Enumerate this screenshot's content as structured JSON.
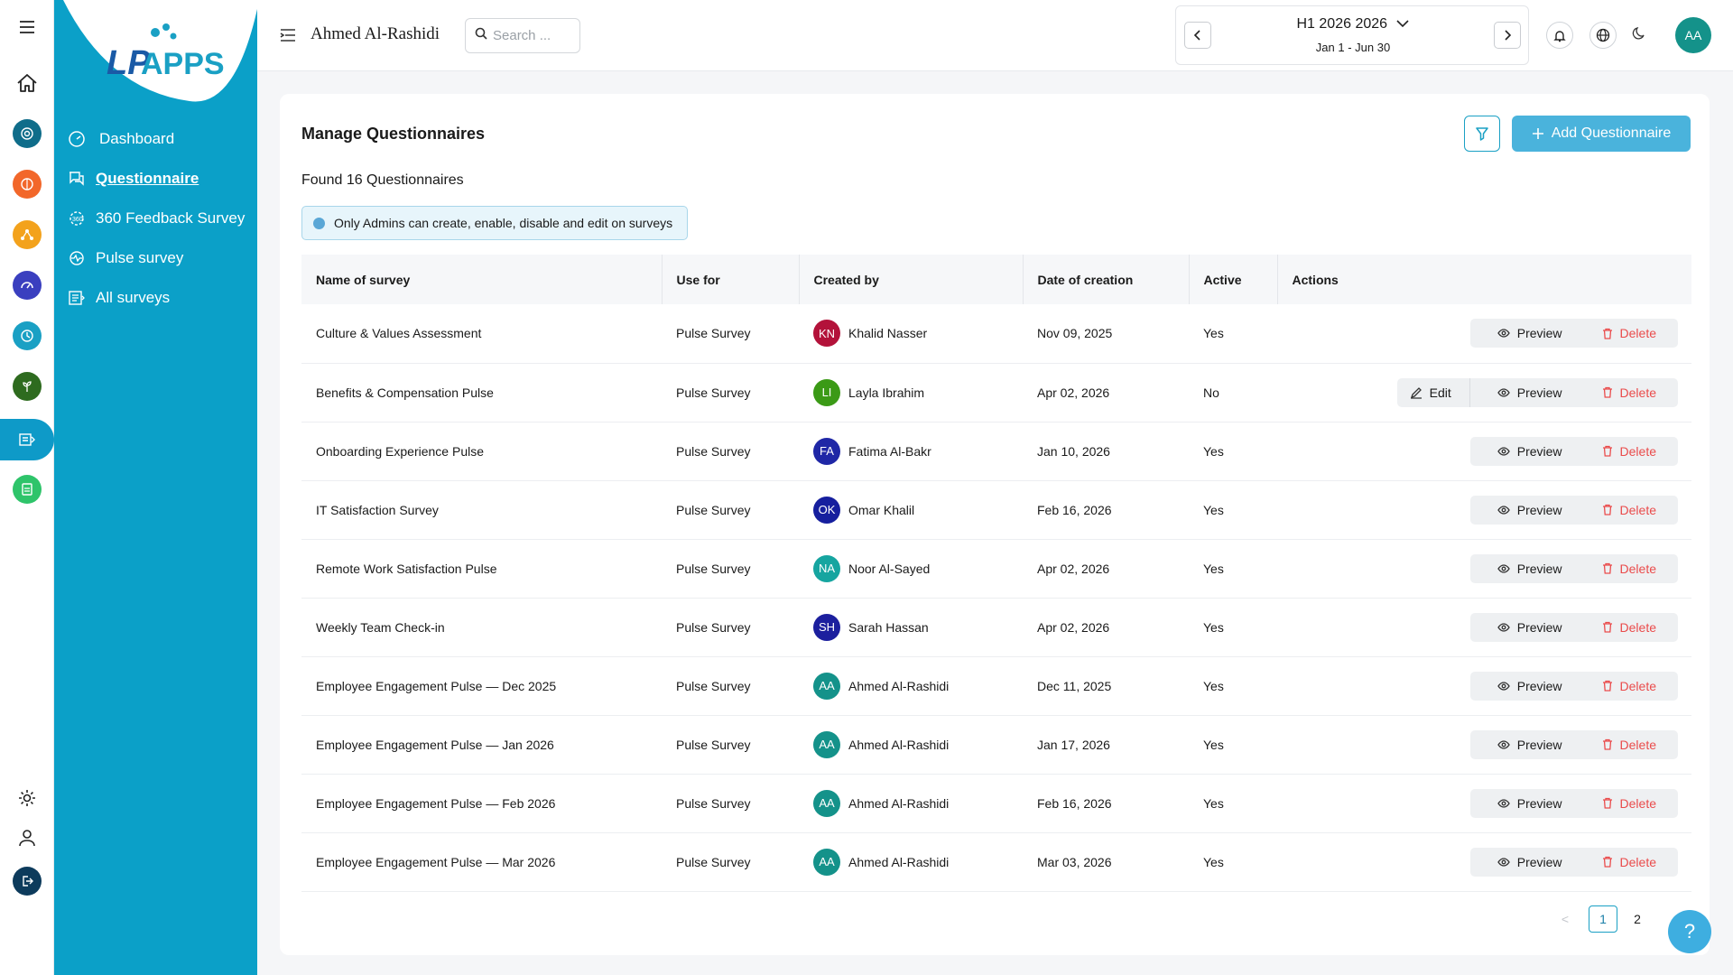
{
  "brand": {
    "logo_text": "APPS",
    "logo_prefix": "L P"
  },
  "rail": {
    "items": [
      {
        "name": "home-icon"
      },
      {
        "name": "target-icon",
        "color": "#0f6d8a"
      },
      {
        "name": "brain-icon",
        "color": "#f2672a"
      },
      {
        "name": "network-icon",
        "color": "#f3a21c"
      },
      {
        "name": "gauge-icon",
        "color": "#3a3fbf"
      },
      {
        "name": "clock-icon",
        "color": "#1aa0c4"
      },
      {
        "name": "plant-icon",
        "color": "#2e6b1f"
      },
      {
        "name": "survey-icon",
        "color": "#ffffff"
      },
      {
        "name": "report-icon",
        "color": "#2ec46a"
      }
    ],
    "bottom": [
      {
        "name": "settings-icon"
      },
      {
        "name": "user-icon"
      },
      {
        "name": "logout-icon"
      }
    ]
  },
  "sidebar": {
    "items": [
      {
        "label": "Dashboard",
        "icon": "dashboard-icon"
      },
      {
        "label": "Questionnaire",
        "icon": "chat-icon"
      },
      {
        "label": "360 Feedback Survey",
        "icon": "feedback-icon"
      },
      {
        "label": "Pulse survey",
        "icon": "pulse-icon"
      },
      {
        "label": "All surveys",
        "icon": "list-icon"
      }
    ]
  },
  "header": {
    "user_name": "Ahmed Al-Rashidi",
    "search_placeholder": "Search ...",
    "period_title": "H1 2026 2026",
    "period_range": "Jan 1 - Jun 30",
    "avatar_initials": "AA"
  },
  "page": {
    "title": "Manage Questionnaires",
    "found": "Found 16 Questionnaires",
    "notice": "Only Admins can create, enable, disable and edit on surveys",
    "add_label": "Add Questionnaire"
  },
  "table": {
    "headers": [
      "Name of survey",
      "Use for",
      "Created by",
      "Date of creation",
      "Active",
      "Actions"
    ],
    "action_labels": {
      "edit": "Edit",
      "preview": "Preview",
      "delete": "Delete"
    },
    "rows": [
      {
        "name": "Culture & Values Assessment",
        "use_for": "Pulse Survey",
        "initials": "KN",
        "avatar_color": "#b3123a",
        "creator": "Khalid Nasser",
        "date": "Nov 09, 2025",
        "active": "Yes",
        "edit": false
      },
      {
        "name": "Benefits & Compensation Pulse",
        "use_for": "Pulse Survey",
        "initials": "LI",
        "avatar_color": "#3b9a16",
        "creator": "Layla Ibrahim",
        "date": "Apr 02, 2026",
        "active": "No",
        "edit": true
      },
      {
        "name": "Onboarding Experience Pulse",
        "use_for": "Pulse Survey",
        "initials": "FA",
        "avatar_color": "#1f27a6",
        "creator": "Fatima Al-Bakr",
        "date": "Jan 10, 2026",
        "active": "Yes",
        "edit": false
      },
      {
        "name": "IT Satisfaction Survey",
        "use_for": "Pulse Survey",
        "initials": "OK",
        "avatar_color": "#161f9e",
        "creator": "Omar Khalil",
        "date": "Feb 16, 2026",
        "active": "Yes",
        "edit": false
      },
      {
        "name": "Remote Work Satisfaction Pulse",
        "use_for": "Pulse Survey",
        "initials": "NA",
        "avatar_color": "#16a5a0",
        "creator": "Noor Al-Sayed",
        "date": "Apr 02, 2026",
        "active": "Yes",
        "edit": false
      },
      {
        "name": "Weekly Team Check-in",
        "use_for": "Pulse Survey",
        "initials": "SH",
        "avatar_color": "#1c1f9e",
        "creator": "Sarah Hassan",
        "date": "Apr 02, 2026",
        "active": "Yes",
        "edit": false
      },
      {
        "name": "Employee Engagement Pulse — Dec 2025",
        "use_for": "Pulse Survey",
        "initials": "AA",
        "avatar_color": "#14928a",
        "creator": "Ahmed Al-Rashidi",
        "date": "Dec 11, 2025",
        "active": "Yes",
        "edit": false
      },
      {
        "name": "Employee Engagement Pulse — Jan 2026",
        "use_for": "Pulse Survey",
        "initials": "AA",
        "avatar_color": "#14928a",
        "creator": "Ahmed Al-Rashidi",
        "date": "Jan 17, 2026",
        "active": "Yes",
        "edit": false
      },
      {
        "name": "Employee Engagement Pulse — Feb 2026",
        "use_for": "Pulse Survey",
        "initials": "AA",
        "avatar_color": "#14928a",
        "creator": "Ahmed Al-Rashidi",
        "date": "Feb 16, 2026",
        "active": "Yes",
        "edit": false
      },
      {
        "name": "Employee Engagement Pulse — Mar 2026",
        "use_for": "Pulse Survey",
        "initials": "AA",
        "avatar_color": "#14928a",
        "creator": "Ahmed Al-Rashidi",
        "date": "Mar 03, 2026",
        "active": "Yes",
        "edit": false
      }
    ]
  },
  "pagination": {
    "prev": "<",
    "pages": [
      "1",
      "2"
    ],
    "current": "1"
  },
  "help_label": "?"
}
